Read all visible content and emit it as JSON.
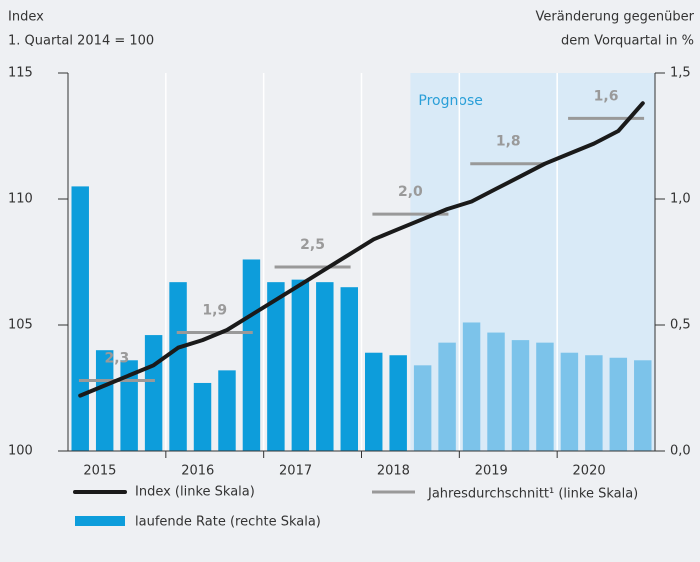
{
  "chart_data": {
    "type": "bar_line",
    "left_axis_title": [
      "Index",
      "1. Quartal 2014 = 100"
    ],
    "right_axis_title": [
      "Veränderung gegenüber",
      "dem Vorquartal in %"
    ],
    "forecast_label": "Prognose",
    "categories": [
      "2015",
      "2016",
      "2017",
      "2018",
      "2019",
      "2020"
    ],
    "ylim": [
      100,
      115
    ],
    "yticks": [
      100,
      105,
      110,
      115
    ],
    "y2lim": [
      0,
      1.5
    ],
    "y2ticks": [
      {
        "value": 0,
        "label": "0,0"
      },
      {
        "value": 0.5,
        "label": "0,5"
      },
      {
        "value": 1,
        "label": "1,0"
      },
      {
        "value": 1.5,
        "label": "1,5"
      }
    ],
    "bars": {
      "name": "laufende Rate (rechte Skala)",
      "axis": "y2",
      "values": [
        1.05,
        0.4,
        0.36,
        0.46,
        0.67,
        0.27,
        0.32,
        0.76,
        0.67,
        0.68,
        0.67,
        0.65,
        0.39,
        0.38,
        0.34,
        0.43,
        0.51,
        0.47,
        0.44,
        0.43,
        0.39,
        0.38,
        0.37,
        0.36
      ],
      "colors": [
        "#0d9ddb",
        "#0d9ddb",
        "#0d9ddb",
        "#0d9ddb",
        "#0d9ddb",
        "#0d9ddb",
        "#0d9ddb",
        "#0d9ddb",
        "#0d9ddb",
        "#0d9ddb",
        "#0d9ddb",
        "#0d9ddb",
        "#0d9ddb",
        "#0d9ddb",
        "#7cc3ea",
        "#7cc3ea",
        "#7cc3ea",
        "#7cc3ea",
        "#7cc3ea",
        "#7cc3ea",
        "#7cc3ea",
        "#7cc3ea",
        "#7cc3ea",
        "#7cc3ea"
      ]
    },
    "line": {
      "name": "Index (linke Skala)",
      "color": "#1a1a1a",
      "values": [
        102.2,
        102.6,
        103.0,
        103.4,
        104.1,
        104.4,
        104.8,
        105.4,
        106.0,
        106.6,
        107.2,
        107.8,
        108.4,
        108.8,
        109.2,
        109.6,
        109.9,
        110.4,
        110.9,
        111.4,
        111.8,
        112.2,
        112.7,
        113.8
      ]
    },
    "annual": {
      "name": "Jahresdurchschnitt¹ (linke Skala)",
      "color": "#999999",
      "values": [
        102.8,
        104.7,
        107.3,
        109.4,
        111.4,
        113.2
      ],
      "labels": [
        "2,3",
        "1,9",
        "2,5",
        "2,0",
        "1,8",
        "1,6"
      ]
    }
  }
}
